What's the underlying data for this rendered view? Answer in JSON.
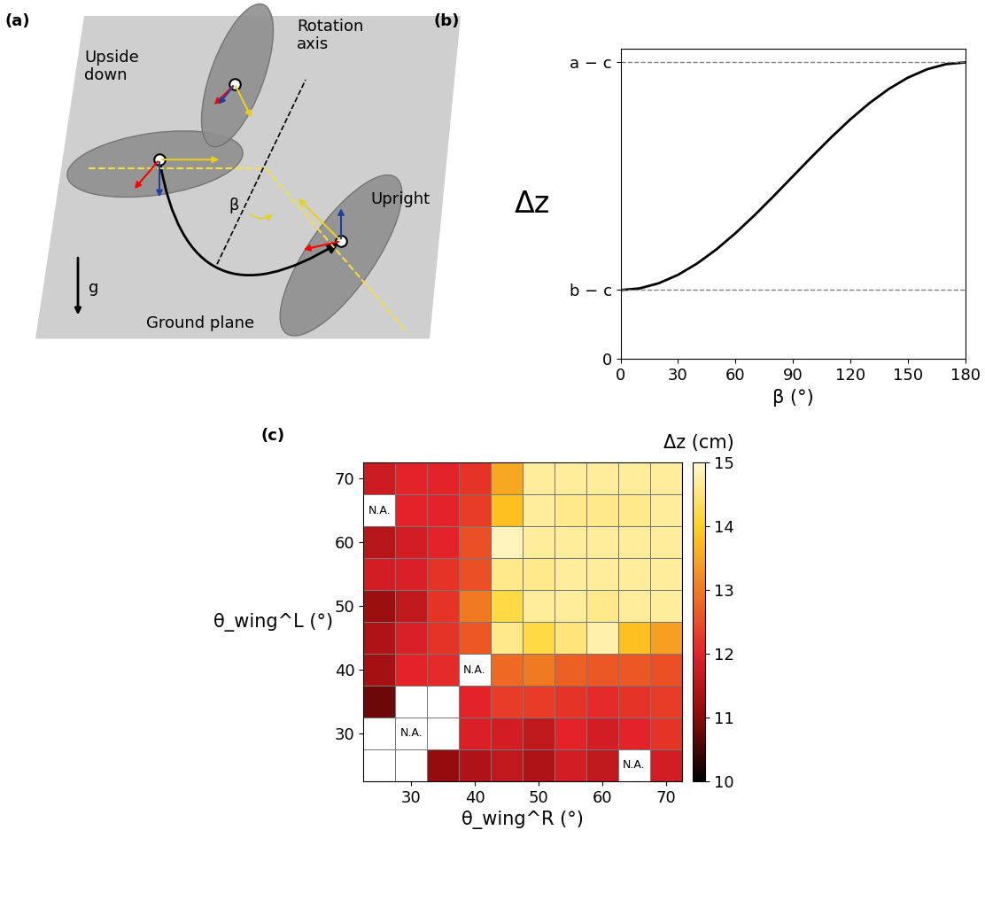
{
  "diagram": {
    "panel_label": "(a)",
    "labels": [
      "Upside\ndown",
      "Rotation\naxis",
      "β",
      "Upright",
      "g",
      "Ground plane"
    ]
  },
  "chart_data": [
    {
      "type": "line",
      "panel_label": "(b)",
      "xlabel": "β (°)",
      "ylabel": "Δz",
      "x": [
        0,
        10,
        20,
        30,
        40,
        50,
        60,
        70,
        80,
        90,
        100,
        110,
        120,
        130,
        140,
        150,
        160,
        170,
        180
      ],
      "values": [
        1,
        1.025,
        1.1,
        1.221,
        1.386,
        1.589,
        1.825,
        2.086,
        2.364,
        2.65,
        2.936,
        3.214,
        3.475,
        3.711,
        3.914,
        4.079,
        4.2,
        4.275,
        4.3
      ],
      "color": "#000000",
      "hlines": [
        1,
        4.3
      ],
      "xlim": [
        0,
        180
      ],
      "xticks": [
        0,
        30,
        60,
        90,
        120,
        150,
        180
      ],
      "ylim": [
        0,
        4.5
      ],
      "yticks": [
        0,
        {
          "value": 1,
          "label": "b − c"
        },
        {
          "value": 4.3,
          "label": "a − c"
        }
      ]
    },
    {
      "type": "heatmap",
      "panel_label": "(c)",
      "xlabel": "θ_wing^R (°)",
      "ylabel": "θ_wing^L (°)",
      "x": [
        25,
        30,
        35,
        40,
        45,
        50,
        55,
        60,
        65,
        70
      ],
      "y": [
        25,
        30,
        35,
        40,
        45,
        50,
        55,
        60,
        65,
        70
      ],
      "cells": [
        [
          null,
          null,
          11.1,
          11.4,
          11.6,
          11.4,
          11.8,
          11.6,
          null,
          11.8
        ],
        [
          null,
          null,
          null,
          11.9,
          11.8,
          11.6,
          12,
          11.8,
          12,
          12.2
        ],
        [
          10.8,
          null,
          null,
          12,
          12.3,
          12.3,
          12.2,
          12.1,
          12.2,
          12.3
        ],
        [
          11.3,
          12,
          12.1,
          null,
          12.8,
          13,
          12.7,
          12.6,
          12.6,
          12.5
        ],
        [
          11.4,
          11.9,
          12.2,
          12.6,
          14.6,
          14.2,
          14.5,
          14.8,
          13.8,
          13.4
        ],
        [
          11.2,
          11.6,
          12.2,
          13,
          14.2,
          14.7,
          14.7,
          14.6,
          14.7,
          14.7
        ],
        [
          11.8,
          11.9,
          12.2,
          12.5,
          14.6,
          14.6,
          14.7,
          14.7,
          14.7,
          14.7
        ],
        [
          11.5,
          11.8,
          12,
          12.5,
          14.9,
          14.7,
          14.7,
          14.7,
          14.7,
          14.7
        ],
        [
          null,
          12,
          12,
          12.3,
          13.8,
          14.7,
          14.6,
          14.6,
          14.6,
          14.7
        ],
        [
          11.7,
          12,
          12,
          12.2,
          13.5,
          14.7,
          14.7,
          14.7,
          14.7,
          14.7
        ]
      ],
      "na_label": "N.A.",
      "na_label_at": [
        [
          25,
          65
        ],
        [
          40,
          40
        ],
        [
          30,
          30
        ],
        [
          65,
          25
        ]
      ],
      "xlim": [
        22.5,
        72.5
      ],
      "xticks": [
        30,
        40,
        50,
        60,
        70
      ],
      "ylim": [
        22.5,
        72.5
      ],
      "yticks": [
        30,
        40,
        50,
        60,
        70
      ],
      "colorbar_label": "Δz (cm)",
      "colorbar_range": [
        10,
        15
      ],
      "colorbar_ticks": [
        10,
        11,
        12,
        13,
        14,
        15
      ]
    }
  ]
}
